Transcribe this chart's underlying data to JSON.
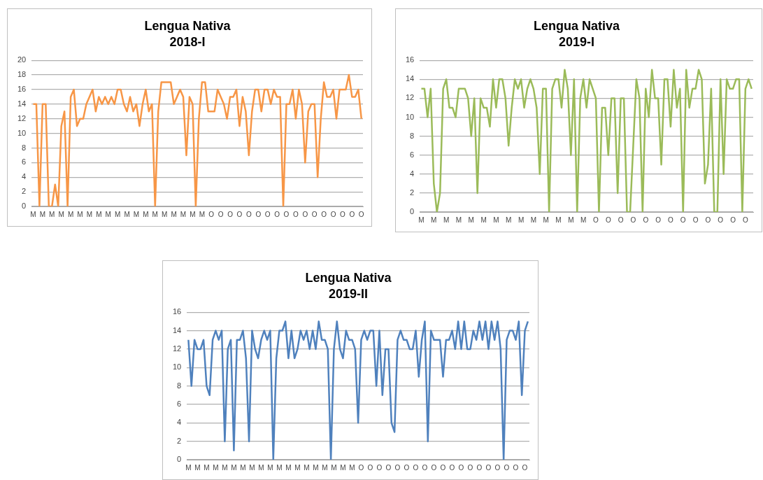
{
  "chart_data": [
    {
      "type": "line",
      "title": "Lengua Nativa",
      "subtitle": "2018-I",
      "color": "#f79646",
      "grid": "y",
      "ylim": [
        0,
        20
      ],
      "yticks": [
        0,
        2,
        4,
        6,
        8,
        10,
        12,
        14,
        16,
        18,
        20
      ],
      "categories": [
        "M",
        null,
        null,
        "M",
        null,
        null,
        "M",
        null,
        null,
        "M",
        null,
        null,
        "M",
        null,
        null,
        "M",
        null,
        null,
        "M",
        null,
        null,
        "M",
        null,
        null,
        "M",
        null,
        null,
        "M",
        null,
        null,
        "M",
        null,
        null,
        "M",
        null,
        null,
        "M",
        null,
        null,
        "M",
        null,
        null,
        "M",
        null,
        null,
        "M",
        null,
        null,
        "M",
        null,
        null,
        "M",
        null,
        null,
        "M",
        null,
        null,
        "O",
        null,
        null,
        "O",
        null,
        null,
        "O",
        null,
        null,
        "O",
        null,
        null,
        "O",
        null,
        null,
        "O",
        null,
        null,
        "O",
        null,
        null,
        "O",
        null,
        null,
        "O",
        null,
        null,
        "O",
        null,
        null,
        "O",
        null,
        null,
        "O",
        null,
        null,
        "O",
        null,
        null,
        "O",
        null,
        null,
        "O",
        null,
        null,
        "O",
        null,
        null,
        "O"
      ],
      "values": [
        14,
        14,
        0,
        14,
        14,
        0,
        0,
        3,
        0,
        11,
        13,
        0,
        15,
        16,
        11,
        12,
        12,
        14,
        15,
        16,
        13,
        15,
        14,
        15,
        14,
        15,
        14,
        16,
        16,
        14,
        13,
        15,
        13,
        14,
        11,
        14,
        16,
        13,
        14,
        0,
        13,
        17,
        17,
        17,
        17,
        14,
        15,
        16,
        15,
        7,
        15,
        14,
        0,
        12,
        17,
        17,
        13,
        13,
        13,
        16,
        15,
        14,
        12,
        15,
        15,
        16,
        11,
        15,
        13,
        7,
        13,
        16,
        16,
        13,
        16,
        16,
        14,
        16,
        15,
        15,
        0,
        14,
        14,
        16,
        12,
        16,
        14,
        6,
        13,
        14,
        14,
        4,
        12,
        17,
        15,
        15,
        16,
        12,
        16,
        16,
        16,
        18,
        15,
        15,
        16,
        12
      ]
    },
    {
      "type": "line",
      "title": "Lengua Nativa",
      "subtitle": "2019-I",
      "color": "#9bbb59",
      "grid": "y",
      "ylim": [
        0,
        16
      ],
      "yticks": [
        0,
        2,
        4,
        6,
        8,
        10,
        12,
        14,
        16
      ],
      "categories": [
        "M",
        null,
        null,
        null,
        "M",
        null,
        null,
        null,
        "M",
        null,
        null,
        null,
        "M",
        null,
        null,
        null,
        "M",
        null,
        null,
        null,
        "M",
        null,
        null,
        null,
        "M",
        null,
        null,
        null,
        "M",
        null,
        null,
        null,
        "M",
        null,
        null,
        null,
        "M",
        null,
        null,
        null,
        "M",
        null,
        null,
        null,
        "M",
        null,
        null,
        null,
        "M",
        null,
        null,
        null,
        "M",
        null,
        null,
        null,
        "O",
        null,
        null,
        null,
        "O",
        null,
        null,
        null,
        "O",
        null,
        null,
        null,
        "O",
        null,
        null,
        null,
        "O",
        null,
        null,
        null,
        "O",
        null,
        null,
        null,
        "O",
        null,
        null,
        null,
        "O",
        null,
        null,
        null,
        "O",
        null,
        null,
        null,
        "O",
        null,
        null,
        null,
        "O",
        null,
        null,
        null,
        "O",
        null,
        null,
        null,
        "O",
        null,
        null
      ],
      "values": [
        13,
        13,
        10,
        13,
        3,
        0,
        2,
        13,
        14,
        11,
        11,
        10,
        13,
        13,
        13,
        12,
        8,
        12,
        2,
        12,
        11,
        11,
        9,
        14,
        11,
        14,
        14,
        12,
        7,
        11,
        14,
        13,
        14,
        11,
        13,
        14,
        13,
        11,
        4,
        13,
        13,
        0,
        13,
        14,
        14,
        11,
        15,
        13,
        6,
        14,
        0,
        12,
        14,
        11,
        14,
        13,
        12,
        0,
        11,
        11,
        6,
        12,
        12,
        2,
        12,
        12,
        0,
        0,
        7,
        14,
        12,
        0,
        13,
        10,
        15,
        12,
        12,
        5,
        14,
        14,
        9,
        15,
        11,
        13,
        0,
        15,
        11,
        13,
        13,
        15,
        14,
        3,
        5,
        13,
        0,
        0,
        14,
        4,
        14,
        13,
        13,
        14,
        14,
        0,
        13,
        14,
        13
      ]
    },
    {
      "type": "line",
      "title": "Lengua Nativa",
      "subtitle": "2019-II",
      "color": "#4f81bd",
      "grid": "y",
      "ylim": [
        0,
        16
      ],
      "yticks": [
        0,
        2,
        4,
        6,
        8,
        10,
        12,
        14,
        16
      ],
      "categories": [
        "M",
        null,
        null,
        "M",
        null,
        null,
        "M",
        null,
        null,
        "M",
        null,
        null,
        "M",
        null,
        null,
        "M",
        null,
        null,
        "M",
        null,
        null,
        "M",
        null,
        null,
        "M",
        null,
        null,
        "M",
        null,
        null,
        "M",
        null,
        null,
        "M",
        null,
        null,
        "M",
        null,
        null,
        "M",
        null,
        null,
        "M",
        null,
        null,
        "M",
        null,
        null,
        "M",
        null,
        null,
        "M",
        null,
        null,
        "M",
        null,
        null,
        "O",
        null,
        null,
        "O",
        null,
        null,
        "O",
        null,
        null,
        "O",
        null,
        null,
        "O",
        null,
        null,
        "O",
        null,
        null,
        "O",
        null,
        null,
        "O",
        null,
        null,
        "O",
        null,
        null,
        "O",
        null,
        null,
        "O",
        null,
        null,
        "O",
        null,
        null,
        "O",
        null,
        null,
        "O",
        null,
        null,
        "O",
        null,
        null,
        "O",
        null,
        null,
        "O",
        null,
        null,
        "O",
        null,
        null,
        "O",
        null
      ],
      "values": [
        13,
        8,
        13,
        12,
        12,
        13,
        8,
        7,
        13,
        14,
        13,
        14,
        2,
        12,
        13,
        1,
        13,
        13,
        14,
        11,
        2,
        14,
        12,
        11,
        13,
        14,
        13,
        14,
        0,
        11,
        14,
        14,
        15,
        11,
        14,
        11,
        12,
        14,
        13,
        14,
        12,
        14,
        12,
        15,
        13,
        13,
        12,
        0,
        12,
        15,
        12,
        11,
        14,
        13,
        13,
        12,
        4,
        13,
        14,
        13,
        14,
        14,
        8,
        14,
        7,
        12,
        12,
        4,
        3,
        13,
        14,
        13,
        13,
        12,
        12,
        14,
        9,
        13,
        15,
        2,
        14,
        13,
        13,
        13,
        9,
        13,
        13,
        14,
        12,
        15,
        12,
        15,
        12,
        12,
        14,
        13,
        15,
        13,
        15,
        12,
        15,
        13,
        15,
        12,
        0,
        13,
        14,
        14,
        13,
        15,
        7,
        14,
        15
      ]
    }
  ]
}
